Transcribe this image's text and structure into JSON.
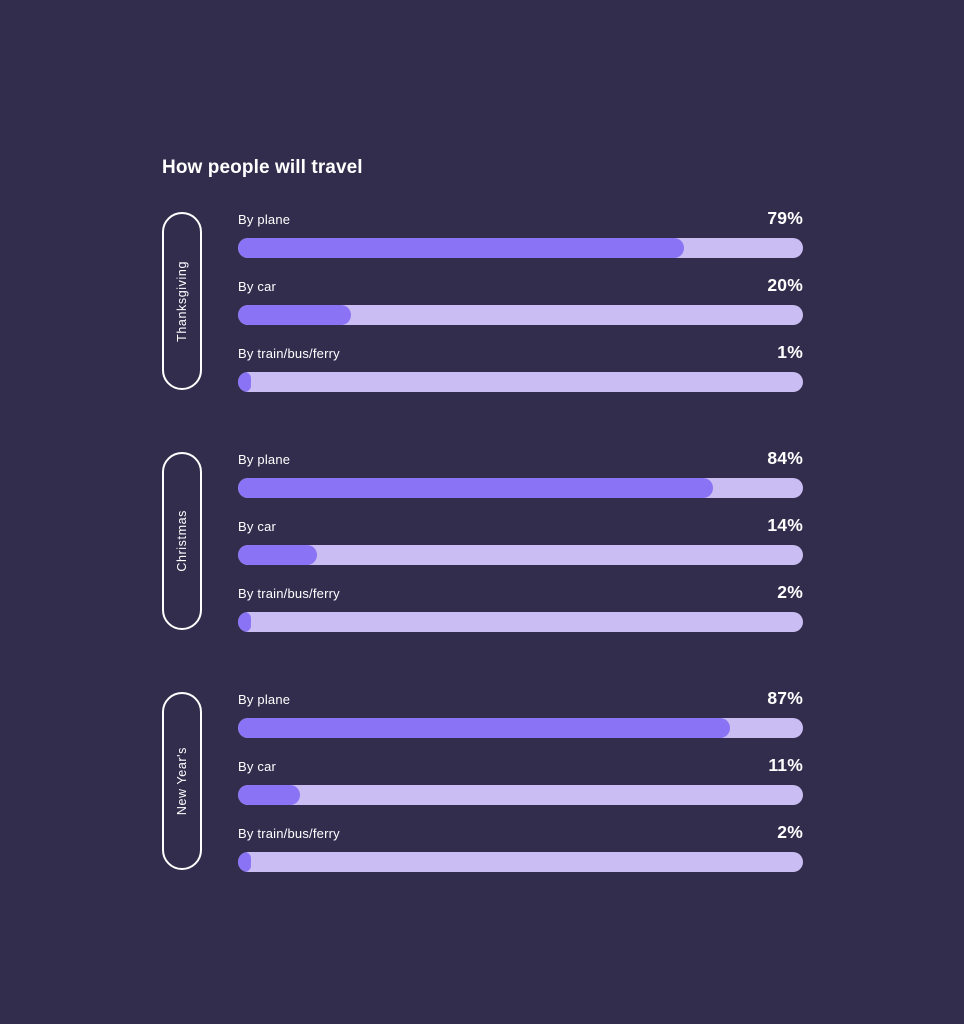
{
  "chart_data": {
    "type": "bar",
    "title": "How people will travel",
    "orientation": "horizontal",
    "unit": "%",
    "xlim": [
      0,
      100
    ],
    "colors": {
      "background": "#322D4D",
      "bar_fill": "#8A73F5",
      "bar_track": "#C9BDF4",
      "text": "#FFFFFF"
    },
    "groups": [
      {
        "label": "Thanksgiving",
        "rows": [
          {
            "label": "By plane",
            "value": 79,
            "display": "79%"
          },
          {
            "label": "By car",
            "value": 20,
            "display": "20%"
          },
          {
            "label": "By train/bus/ferry",
            "value": 1,
            "display": "1%"
          }
        ]
      },
      {
        "label": "Christmas",
        "rows": [
          {
            "label": "By plane",
            "value": 84,
            "display": "84%"
          },
          {
            "label": "By car",
            "value": 14,
            "display": "14%"
          },
          {
            "label": "By train/bus/ferry",
            "value": 2,
            "display": "2%"
          }
        ]
      },
      {
        "label": "New Year's",
        "rows": [
          {
            "label": "By plane",
            "value": 87,
            "display": "87%"
          },
          {
            "label": "By car",
            "value": 11,
            "display": "11%"
          },
          {
            "label": "By train/bus/ferry",
            "value": 2,
            "display": "2%"
          }
        ]
      }
    ]
  }
}
